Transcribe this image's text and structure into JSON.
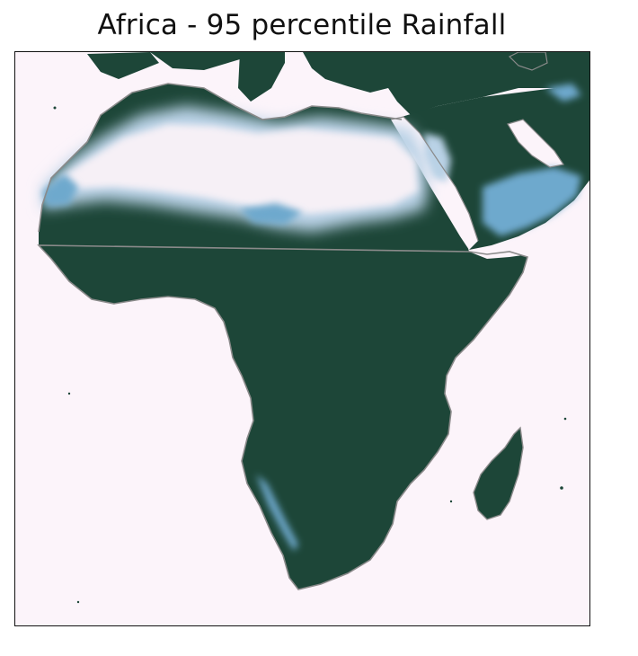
{
  "title": "Africa - 95 percentile Rainfall",
  "map": {
    "region": "Africa",
    "colors": {
      "ocean": "#fcf4fa",
      "land_wet": "#1d4638",
      "coastline": "#8a8a8a",
      "dry_light": "#f6f0f6",
      "dry_mid": "#b9d2e6",
      "dry_blue": "#6ea9cd"
    }
  }
}
